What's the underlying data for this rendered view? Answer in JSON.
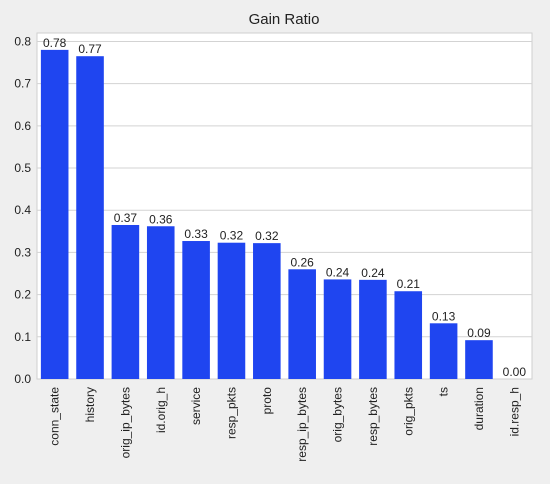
{
  "chart_data": {
    "type": "bar",
    "title": "Gain Ratio",
    "xlabel": "",
    "ylabel": "",
    "categories": [
      "conn_state",
      "history",
      "orig_ip_bytes",
      "id.orig_h",
      "service",
      "resp_pkts",
      "proto",
      "resp_ip_bytes",
      "orig_bytes",
      "resp_bytes",
      "orig_pkts",
      "ts",
      "duration",
      "id.resp_h"
    ],
    "values": [
      0.78,
      0.765,
      0.365,
      0.362,
      0.327,
      0.323,
      0.322,
      0.26,
      0.236,
      0.235,
      0.208,
      0.132,
      0.092,
      0.0
    ],
    "value_labels": [
      "0.78",
      "0.77",
      "0.37",
      "0.36",
      "0.33",
      "0.32",
      "0.32",
      "0.26",
      "0.24",
      "0.24",
      "0.21",
      "0.13",
      "0.09",
      "0.00"
    ],
    "ylim": [
      0,
      0.82
    ],
    "yticks": [
      0.0,
      0.1,
      0.2,
      0.3,
      0.4,
      0.5,
      0.6,
      0.7,
      0.8
    ],
    "ytick_labels": [
      "0.0",
      "0.1",
      "0.2",
      "0.3",
      "0.4",
      "0.5",
      "0.6",
      "0.7",
      "0.8"
    ],
    "grid": "horizontal",
    "legend": "none",
    "colors": {
      "bar": "#1f45f0",
      "plot_background": "#ffffff",
      "page_background": "#efefef",
      "grid": "#d3d3d3",
      "text": "#222222"
    }
  }
}
